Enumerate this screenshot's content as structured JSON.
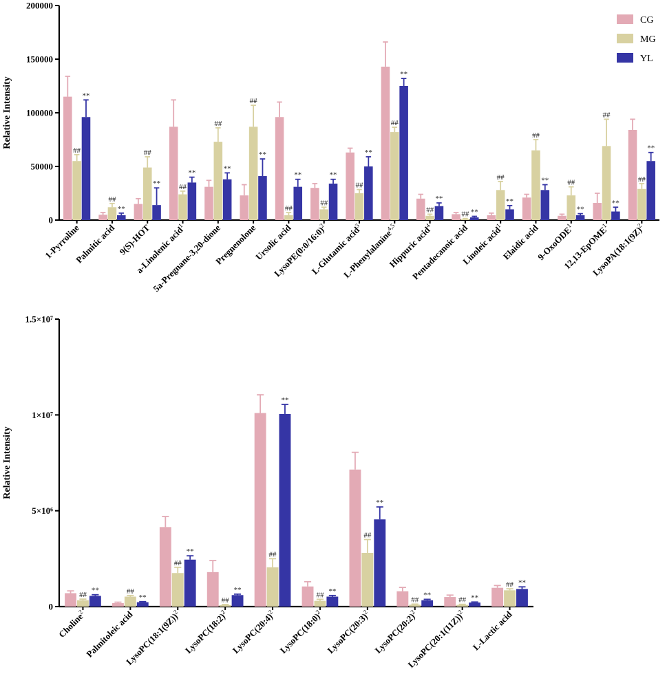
{
  "chart_data": [
    {
      "type": "bar",
      "ylabel": "Relative Intensity",
      "ylim": [
        0,
        200000
      ],
      "yticks": [
        0,
        50000,
        100000,
        150000,
        200000
      ],
      "ytick_labels": [
        "0",
        "50000",
        "100000",
        "150000",
        "200000"
      ],
      "categories": [
        {
          "name": "1-Pyrroline",
          "sup": ""
        },
        {
          "name": "Palmitic acid",
          "sup": ""
        },
        {
          "name": "9(S)-HOT",
          "sup": ""
        },
        {
          "name": "a-Linolenic acid",
          "sup": "1"
        },
        {
          "name": "5a-Pregnane-3,20-dione",
          "sup": ""
        },
        {
          "name": "Pregnenolone",
          "sup": ""
        },
        {
          "name": "Ursolic acid",
          "sup": ""
        },
        {
          "name": "LysoPE(0:0/16:0)",
          "sup": "2"
        },
        {
          "name": "L-Glutamic acid",
          "sup": "3"
        },
        {
          "name": "L-Phenylalanine",
          "sup": "4,5"
        },
        {
          "name": "Hippuric acid",
          "sup": "4"
        },
        {
          "name": "Pentadecanoic acid",
          "sup": ""
        },
        {
          "name": "Linoleic acid",
          "sup": "1"
        },
        {
          "name": "Elaidic acid",
          "sup": ""
        },
        {
          "name": "9-OxoODE",
          "sup": "1"
        },
        {
          "name": "12,13-EpOME",
          "sup": "1"
        },
        {
          "name": "LysoPA(18:1(9Z)",
          "sup": "2"
        }
      ],
      "series": [
        {
          "name": "CG",
          "color": "#e3aab5",
          "values": [
            115000,
            5000,
            15000,
            87000,
            31000,
            23000,
            96000,
            30000,
            63000,
            143000,
            20000,
            5500,
            4500,
            21000,
            4000,
            16000,
            84000
          ],
          "errors": [
            19000,
            2000,
            5000,
            25000,
            6000,
            10000,
            14000,
            4000,
            4000,
            23000,
            4000,
            1500,
            2000,
            3000,
            1500,
            9000,
            10000
          ]
        },
        {
          "name": "MG",
          "color": "#d8d1a1",
          "values": [
            55000,
            12000,
            49000,
            24000,
            73000,
            87000,
            4500,
            10000,
            25000,
            82000,
            4000,
            1000,
            28000,
            65000,
            23000,
            69000,
            29000
          ],
          "errors": [
            6000,
            3500,
            10000,
            3000,
            13000,
            20000,
            2500,
            2000,
            3500,
            4500,
            1500,
            500,
            8000,
            10000,
            8000,
            25000,
            5000
          ],
          "annotations": [
            "##",
            "##",
            "##",
            "##",
            "##",
            "##",
            "##",
            "##",
            "##",
            "##",
            "##",
            "##",
            "##",
            "##",
            "##",
            "##",
            "##"
          ]
        },
        {
          "name": "YL",
          "color": "#3535a5",
          "values": [
            96000,
            4500,
            14000,
            35000,
            38000,
            41000,
            31000,
            34000,
            50000,
            125000,
            13000,
            2500,
            10000,
            28000,
            4500,
            8000,
            55000
          ],
          "errors": [
            16000,
            2000,
            16000,
            5000,
            6000,
            16000,
            7000,
            4000,
            9000,
            7000,
            3000,
            1000,
            3500,
            5000,
            1500,
            4000,
            8000
          ],
          "annotations": [
            "**",
            "**",
            "**",
            "**",
            "**",
            "**",
            "**",
            "**",
            "**",
            "**",
            "**",
            "**",
            "**",
            "**",
            "**",
            "**",
            "**"
          ]
        }
      ],
      "legend": [
        "CG",
        "MG",
        "YL"
      ],
      "legend_position": "top-right"
    },
    {
      "type": "bar",
      "ylabel": "Relative Intensity",
      "ylim": [
        0,
        15000000
      ],
      "yticks": [
        0,
        5000000,
        10000000,
        15000000
      ],
      "ytick_labels": [
        "0",
        "5×10⁶",
        "1×10⁷",
        "1.5×10⁷"
      ],
      "categories": [
        {
          "name": "Choline",
          "sup": "2"
        },
        {
          "name": "Palmitoleic acid",
          "sup": ""
        },
        {
          "name": "LysoPC(18:1(9Z))",
          "sup": "2"
        },
        {
          "name": "LysoPC(18:2)",
          "sup": "2"
        },
        {
          "name": "LysoPC(20:4)",
          "sup": "2"
        },
        {
          "name": "LysoPC(18:0)",
          "sup": "2"
        },
        {
          "name": "LysoPC(20:3)",
          "sup": "2"
        },
        {
          "name": "LysoPC(20:2)",
          "sup": "2"
        },
        {
          "name": "LysoPC(20:1(11Z))",
          "sup": "2"
        },
        {
          "name": "L-Lactic acid",
          "sup": ""
        }
      ],
      "series": [
        {
          "name": "CG",
          "color": "#e3aab5",
          "values": [
            700000,
            180000,
            4150000,
            1800000,
            10100000,
            1050000,
            7150000,
            800000,
            500000,
            980000
          ],
          "errors": [
            120000,
            50000,
            550000,
            600000,
            950000,
            250000,
            900000,
            200000,
            100000,
            120000
          ]
        },
        {
          "name": "MG",
          "color": "#d8d1a1",
          "values": [
            330000,
            520000,
            1750000,
            80000,
            2050000,
            300000,
            2800000,
            100000,
            90000,
            850000
          ],
          "errors": [
            60000,
            60000,
            300000,
            30000,
            450000,
            80000,
            700000,
            30000,
            30000,
            80000
          ],
          "annotations": [
            "##",
            "##",
            "##",
            "##",
            "##",
            "##",
            "##",
            "##",
            "##",
            "##"
          ]
        },
        {
          "name": "YL",
          "color": "#3535a5",
          "values": [
            560000,
            230000,
            2450000,
            600000,
            10050000,
            520000,
            4550000,
            330000,
            210000,
            920000
          ],
          "errors": [
            60000,
            30000,
            200000,
            50000,
            500000,
            60000,
            650000,
            50000,
            30000,
            110000
          ],
          "annotations": [
            "**",
            "**",
            "**",
            "**",
            "**",
            "**",
            "**",
            "**",
            "**",
            "**"
          ]
        }
      ]
    }
  ]
}
